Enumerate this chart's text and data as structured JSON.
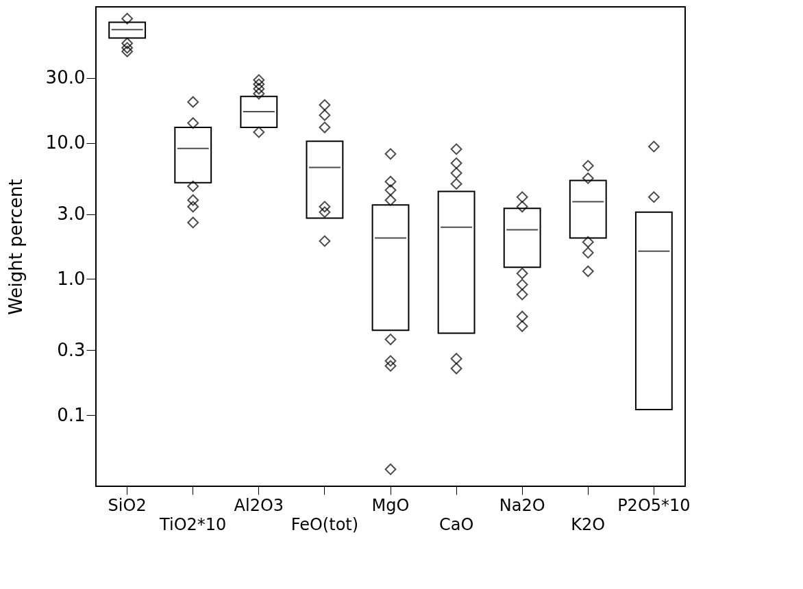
{
  "chart_data": {
    "type": "box",
    "ylabel": "Weight percent",
    "log": true,
    "grid": false,
    "marker": "diamond",
    "categories": [
      "SiO2",
      "TiO2*10",
      "Al2O3",
      "FeO(tot)",
      "MgO",
      "CaO",
      "Na2O",
      "K2O",
      "P2O5*10"
    ],
    "ylim": [
      0.03,
      100
    ],
    "yticks": [
      {
        "value": 0.1,
        "label": "0.1"
      },
      {
        "value": 0.3,
        "label": "0.3"
      },
      {
        "value": 1,
        "label": "1.0"
      },
      {
        "value": 3,
        "label": "3.0"
      },
      {
        "value": 10,
        "label": "10.0"
      },
      {
        "value": 30,
        "label": "30.0"
      }
    ],
    "boxes": [
      {
        "low": 59,
        "q1": 59,
        "median": 68,
        "q3": 77,
        "high": 77,
        "outliers": [
          82,
          54,
          50,
          47
        ]
      },
      {
        "low": 5.1,
        "q1": 5.1,
        "median": 9.1,
        "q3": 13,
        "high": 13,
        "outliers": [
          20,
          14,
          4.8,
          3.8,
          3.4,
          2.6
        ]
      },
      {
        "low": 13,
        "q1": 13,
        "median": 17,
        "q3": 22,
        "high": 22,
        "outliers": [
          29,
          27,
          25,
          23,
          12
        ]
      },
      {
        "low": 2.8,
        "q1": 2.8,
        "median": 6.6,
        "q3": 10.3,
        "high": 10.3,
        "outliers": [
          19,
          16,
          13,
          3.4,
          3.1,
          1.9
        ]
      },
      {
        "low": 0.42,
        "q1": 0.42,
        "median": 2.0,
        "q3": 3.5,
        "high": 3.5,
        "outliers": [
          8.3,
          5.2,
          4.5,
          3.8,
          0.36,
          0.25,
          0.23,
          0.04
        ]
      },
      {
        "low": 0.4,
        "q1": 0.4,
        "median": 2.4,
        "q3": 4.4,
        "high": 4.4,
        "outliers": [
          9.0,
          7.1,
          6.0,
          5.0,
          0.26,
          0.22
        ]
      },
      {
        "low": 1.22,
        "q1": 1.22,
        "median": 2.3,
        "q3": 3.3,
        "high": 3.3,
        "outliers": [
          4.0,
          3.4,
          1.1,
          0.91,
          0.77,
          0.53,
          0.45
        ]
      },
      {
        "low": 2.0,
        "q1": 2.0,
        "median": 3.7,
        "q3": 5.3,
        "high": 5.3,
        "outliers": [
          6.8,
          5.5,
          1.87,
          1.56,
          1.14
        ]
      },
      {
        "low": 0.11,
        "q1": 0.11,
        "median": 1.6,
        "q3": 3.1,
        "high": 3.1,
        "outliers": [
          9.4,
          4.0
        ]
      }
    ]
  }
}
